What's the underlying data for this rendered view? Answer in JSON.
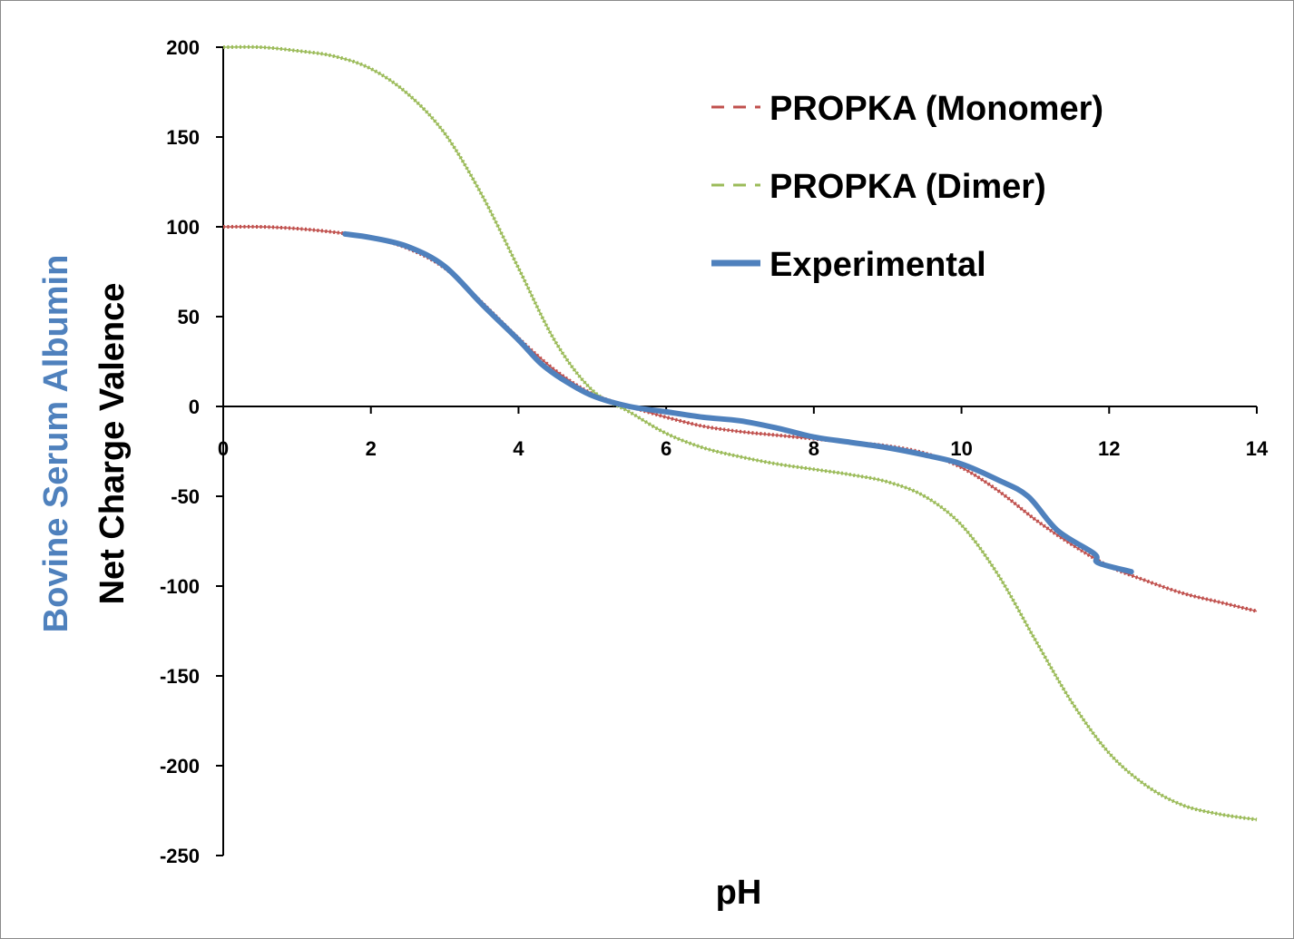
{
  "chart_data": {
    "type": "line",
    "xlabel": "pH",
    "ylabel_line1": "Bovine Serum Albumin",
    "ylabel_line2": "Net Charge Valence",
    "xlim": [
      0,
      14
    ],
    "ylim": [
      -250,
      200
    ],
    "x_ticks": [
      0,
      2,
      4,
      6,
      8,
      10,
      12,
      14
    ],
    "y_ticks": [
      200,
      150,
      100,
      50,
      0,
      -50,
      -100,
      -150,
      -200,
      -250
    ],
    "grid": false,
    "legend_position": "top-right",
    "series": [
      {
        "name": "PROPKA (Monomer)",
        "color": "#c0504d",
        "style": "dashed",
        "x": [
          0,
          0.5,
          1,
          1.5,
          2,
          2.5,
          3,
          3.5,
          4,
          4.5,
          5,
          5.5,
          6,
          6.5,
          7,
          7.5,
          8,
          8.5,
          9,
          9.5,
          10,
          10.5,
          11,
          11.5,
          12,
          12.5,
          13,
          13.5,
          14
        ],
        "values": [
          100,
          100,
          99,
          97,
          94,
          88,
          77,
          58,
          38,
          20,
          7,
          0,
          -6,
          -11,
          -14,
          -16,
          -18,
          -20,
          -22,
          -26,
          -34,
          -47,
          -63,
          -77,
          -89,
          -97,
          -104,
          -109,
          -114
        ]
      },
      {
        "name": "PROPKA (Dimer)",
        "color": "#9bbb59",
        "style": "dashed",
        "x": [
          0,
          0.5,
          1,
          1.5,
          2,
          2.5,
          3,
          3.5,
          4,
          4.5,
          5,
          5.5,
          6,
          6.5,
          7,
          7.5,
          8,
          8.5,
          9,
          9.5,
          10,
          10.5,
          11,
          11.5,
          12,
          12.5,
          13,
          13.5,
          14
        ],
        "values": [
          200,
          200,
          198,
          195,
          188,
          174,
          152,
          118,
          77,
          36,
          9,
          -3,
          -15,
          -23,
          -28,
          -32,
          -35,
          -38,
          -42,
          -50,
          -66,
          -94,
          -130,
          -165,
          -193,
          -211,
          -222,
          -227,
          -230
        ]
      },
      {
        "name": "Experimental",
        "color": "#4f81bd",
        "style": "solid",
        "x": [
          1.65,
          2,
          2.5,
          3,
          3.5,
          4,
          4.3,
          4.6,
          5,
          5.5,
          6,
          6.5,
          7,
          7.5,
          8,
          8.5,
          9,
          9.5,
          10,
          10.5,
          10.9,
          11.3,
          11.8,
          11.85,
          12.3
        ],
        "values": [
          96,
          94,
          89,
          78,
          57,
          37,
          24,
          15,
          6,
          0,
          -3,
          -6,
          -8,
          -12,
          -17,
          -20,
          -23,
          -27,
          -32,
          -41,
          -50,
          -69,
          -82,
          -87,
          -92
        ]
      }
    ]
  }
}
